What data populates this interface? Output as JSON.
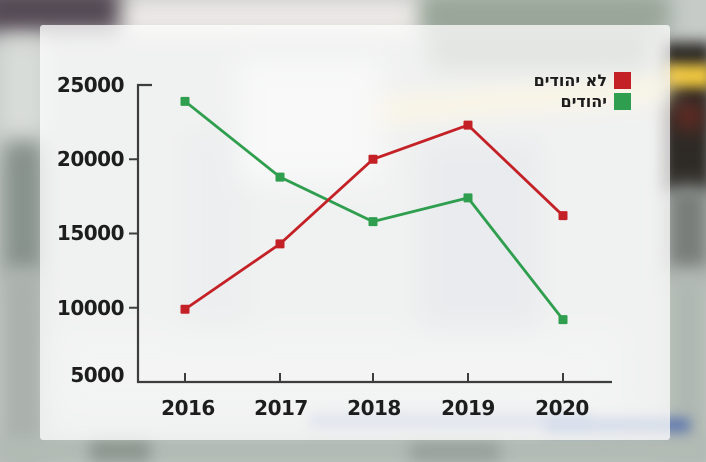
{
  "chart_data": {
    "type": "line",
    "title": "",
    "x": [
      2016,
      2017,
      2018,
      2019,
      2020
    ],
    "x_labels": [
      "2016",
      "2017",
      "2018",
      "2019",
      "2020"
    ],
    "series": [
      {
        "name": "לא יהודים",
        "color": "#c42127",
        "values": [
          9900,
          14300,
          20000,
          22300,
          16200
        ]
      },
      {
        "name": "יהודים",
        "color": "#2f9e4e",
        "values": [
          23900,
          18800,
          15800,
          17400,
          9200
        ]
      }
    ],
    "ylim": [
      5000,
      25000
    ],
    "yticks": [
      25000,
      20000,
      15000,
      10000,
      5000
    ],
    "ytick_labels": [
      "25000",
      "20000",
      "15000",
      "10000",
      "5000"
    ],
    "grid": false,
    "legend_position": "top-right",
    "axis_color": "#3d3d3d",
    "label_color": "#1d1d1d",
    "marker": "square"
  }
}
